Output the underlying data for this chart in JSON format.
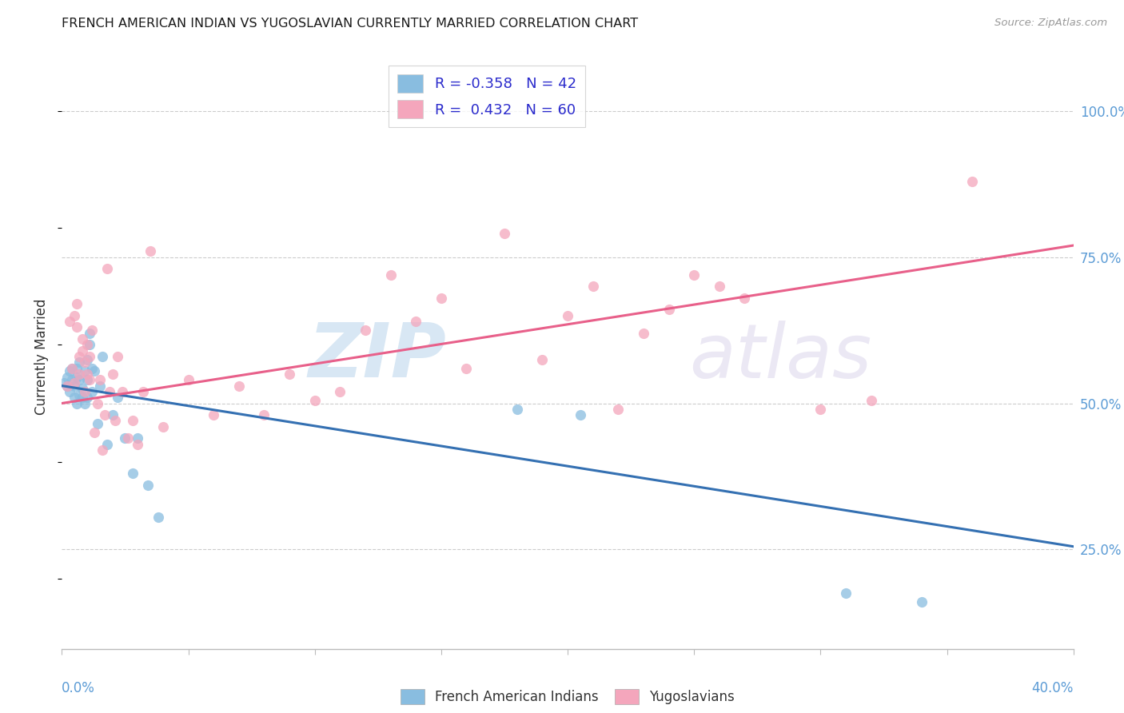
{
  "title": "FRENCH AMERICAN INDIAN VS YUGOSLAVIAN CURRENTLY MARRIED CORRELATION CHART",
  "source": "Source: ZipAtlas.com",
  "ylabel": "Currently Married",
  "ytick_labels": [
    "25.0%",
    "50.0%",
    "75.0%",
    "100.0%"
  ],
  "ytick_values": [
    0.25,
    0.5,
    0.75,
    1.0
  ],
  "xmin": 0.0,
  "xmax": 0.4,
  "ymin": 0.08,
  "ymax": 1.08,
  "legend_r1": "R = -0.358",
  "legend_n1": "N = 42",
  "legend_r2": "R =  0.432",
  "legend_n2": "N = 60",
  "color_blue": "#89bde0",
  "color_pink": "#f4a6bc",
  "color_blue_line": "#3470b2",
  "color_pink_line": "#e8608a",
  "watermark_zip": "ZIP",
  "watermark_atlas": "atlas",
  "blue_x": [
    0.001,
    0.002,
    0.002,
    0.003,
    0.003,
    0.004,
    0.004,
    0.005,
    0.005,
    0.006,
    0.006,
    0.006,
    0.007,
    0.007,
    0.007,
    0.008,
    0.008,
    0.009,
    0.009,
    0.01,
    0.01,
    0.01,
    0.011,
    0.011,
    0.012,
    0.012,
    0.013,
    0.014,
    0.015,
    0.016,
    0.018,
    0.02,
    0.022,
    0.025,
    0.028,
    0.03,
    0.034,
    0.038,
    0.18,
    0.205,
    0.31,
    0.34
  ],
  "blue_y": [
    0.535,
    0.53,
    0.545,
    0.52,
    0.555,
    0.54,
    0.56,
    0.51,
    0.53,
    0.5,
    0.545,
    0.56,
    0.515,
    0.54,
    0.57,
    0.525,
    0.51,
    0.5,
    0.555,
    0.54,
    0.51,
    0.575,
    0.6,
    0.62,
    0.56,
    0.52,
    0.555,
    0.465,
    0.53,
    0.58,
    0.43,
    0.48,
    0.51,
    0.44,
    0.38,
    0.44,
    0.36,
    0.305,
    0.49,
    0.48,
    0.175,
    0.16
  ],
  "pink_x": [
    0.002,
    0.003,
    0.004,
    0.005,
    0.005,
    0.006,
    0.006,
    0.007,
    0.007,
    0.008,
    0.008,
    0.009,
    0.009,
    0.01,
    0.01,
    0.011,
    0.011,
    0.012,
    0.013,
    0.014,
    0.015,
    0.016,
    0.017,
    0.018,
    0.019,
    0.02,
    0.021,
    0.022,
    0.024,
    0.026,
    0.028,
    0.03,
    0.032,
    0.035,
    0.04,
    0.05,
    0.06,
    0.07,
    0.08,
    0.09,
    0.1,
    0.11,
    0.12,
    0.13,
    0.14,
    0.15,
    0.16,
    0.175,
    0.19,
    0.2,
    0.21,
    0.22,
    0.23,
    0.24,
    0.25,
    0.26,
    0.27,
    0.3,
    0.32,
    0.36
  ],
  "pink_y": [
    0.53,
    0.64,
    0.56,
    0.535,
    0.65,
    0.63,
    0.67,
    0.58,
    0.55,
    0.59,
    0.61,
    0.57,
    0.52,
    0.55,
    0.6,
    0.54,
    0.58,
    0.625,
    0.45,
    0.5,
    0.54,
    0.42,
    0.48,
    0.73,
    0.52,
    0.55,
    0.47,
    0.58,
    0.52,
    0.44,
    0.47,
    0.43,
    0.52,
    0.76,
    0.46,
    0.54,
    0.48,
    0.53,
    0.48,
    0.55,
    0.505,
    0.52,
    0.625,
    0.72,
    0.64,
    0.68,
    0.56,
    0.79,
    0.575,
    0.65,
    0.7,
    0.49,
    0.62,
    0.66,
    0.72,
    0.7,
    0.68,
    0.49,
    0.505,
    0.88
  ],
  "blue_line_x0": 0.0,
  "blue_line_x1": 0.4,
  "blue_line_y0": 0.53,
  "blue_line_y1": 0.255,
  "pink_line_x0": 0.0,
  "pink_line_x1": 0.4,
  "pink_line_y0": 0.5,
  "pink_line_y1": 0.77
}
